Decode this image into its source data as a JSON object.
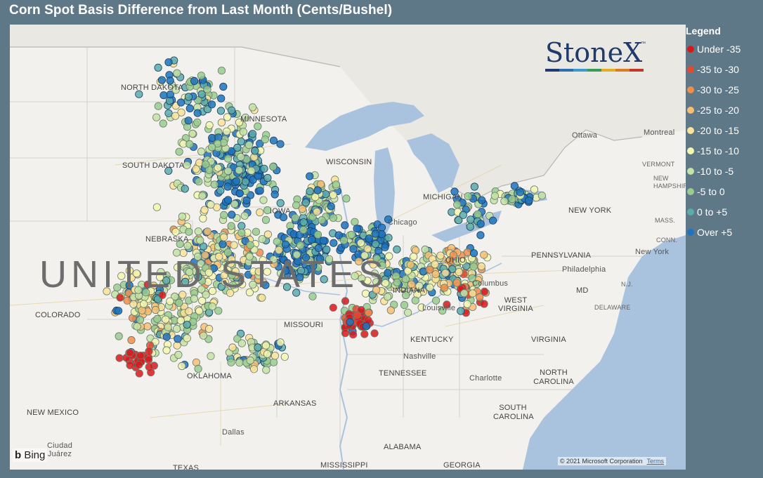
{
  "title": "Corn Spot Basis Difference from Last Month (Cents/Bushel)",
  "legend": {
    "title": "Legend",
    "items": [
      {
        "label": "Under -35",
        "color": "#d7191c"
      },
      {
        "label": "-35 to -30",
        "color": "#e34a33"
      },
      {
        "label": "-30 to -25",
        "color": "#f28e4c"
      },
      {
        "label": "-25 to -20",
        "color": "#f7bf73"
      },
      {
        "label": "-20 to -15",
        "color": "#fbe39a"
      },
      {
        "label": "-15 to -10",
        "color": "#f4f7b0"
      },
      {
        "label": "-10 to -5",
        "color": "#c4e3a6"
      },
      {
        "label": "-5 to 0",
        "color": "#99cc8f"
      },
      {
        "label": "0 to +5",
        "color": "#5cabaa"
      },
      {
        "label": "Over +5",
        "color": "#1f74bd"
      }
    ]
  },
  "logo": {
    "text": "StoneX",
    "tm": "™",
    "bar_colors": [
      "#1f3a6b",
      "#2f6fb0",
      "#3a9bd0",
      "#3a9a5a",
      "#e0b020",
      "#e07a20",
      "#c0392b"
    ]
  },
  "map": {
    "country_label": "UNITED STATES",
    "places": [
      {
        "id": "north-dakota",
        "text": "NORTH DAKOTA"
      },
      {
        "id": "south-dakota",
        "text": "SOUTH DAKOTA"
      },
      {
        "id": "minnesota",
        "text": "MINNESOTA"
      },
      {
        "id": "wisconsin",
        "text": "WISCONSIN"
      },
      {
        "id": "michigan",
        "text": "MICHIGAN"
      },
      {
        "id": "nebraska",
        "text": "NEBRASKA"
      },
      {
        "id": "iowa",
        "text": "IOWA"
      },
      {
        "id": "chicago",
        "text": "Chicago"
      },
      {
        "id": "indiana",
        "text": "INDIANA"
      },
      {
        "id": "ohio",
        "text": "OHIO"
      },
      {
        "id": "columbus",
        "text": "Columbus"
      },
      {
        "id": "louisville",
        "text": "Louisville"
      },
      {
        "id": "colorado",
        "text": "COLORADO"
      },
      {
        "id": "missouri",
        "text": "MISSOURI"
      },
      {
        "id": "kentucky",
        "text": "KENTUCKY"
      },
      {
        "id": "west-virginia",
        "text": "WEST VIRGINIA"
      },
      {
        "id": "virginia",
        "text": "VIRGINIA"
      },
      {
        "id": "nashville",
        "text": "Nashville"
      },
      {
        "id": "tennessee",
        "text": "TENNESSEE"
      },
      {
        "id": "oklahoma",
        "text": "OKLAHOMA"
      },
      {
        "id": "arkansas",
        "text": "ARKANSAS"
      },
      {
        "id": "new-mexico",
        "text": "NEW MEXICO"
      },
      {
        "id": "dallas",
        "text": "Dallas"
      },
      {
        "id": "alabama",
        "text": "ALABAMA"
      },
      {
        "id": "georgia",
        "text": "GEORGIA"
      },
      {
        "id": "mississippi",
        "text": "MISSISSIPPI"
      },
      {
        "id": "texas",
        "text": "TEXAS"
      },
      {
        "id": "ciudad-juarez",
        "text": "Ciudad Juárez"
      },
      {
        "id": "charlotte",
        "text": "Charlotte"
      },
      {
        "id": "north-carolina",
        "text": "NORTH CAROLINA"
      },
      {
        "id": "south-carolina",
        "text": "SOUTH CAROLINA"
      },
      {
        "id": "pennsylvania",
        "text": "PENNSYLVANIA"
      },
      {
        "id": "philadelphia",
        "text": "Philadelphia"
      },
      {
        "id": "new-york-state",
        "text": "NEW YORK"
      },
      {
        "id": "new-york-city",
        "text": "New York"
      },
      {
        "id": "md",
        "text": "MD"
      },
      {
        "id": "delaware",
        "text": "DELAWARE"
      },
      {
        "id": "nj",
        "text": "N.J."
      },
      {
        "id": "ottawa",
        "text": "Ottawa"
      },
      {
        "id": "montreal",
        "text": "Montreal"
      },
      {
        "id": "vermont",
        "text": "VERMONT"
      },
      {
        "id": "new-hampshire",
        "text": "NEW HAMPSHIRE"
      },
      {
        "id": "mass",
        "text": "MASS."
      },
      {
        "id": "conn",
        "text": "CONN."
      }
    ]
  },
  "attribution": {
    "bing": "Bing",
    "copyright": "© 2021 Microsoft Corporation",
    "terms": "Terms"
  }
}
